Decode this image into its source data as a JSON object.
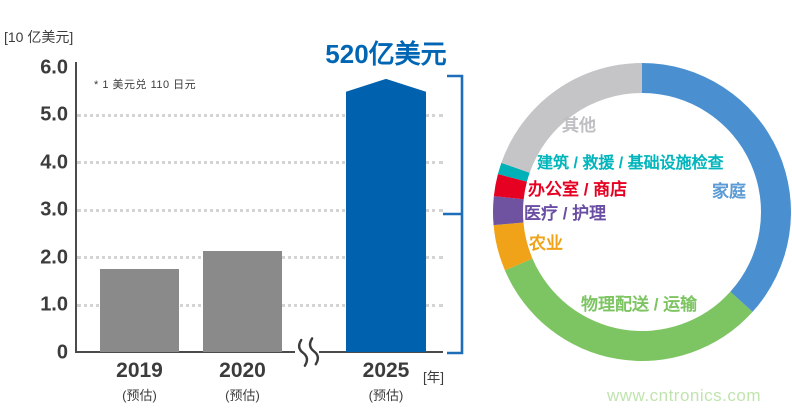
{
  "bar_chart": {
    "unit_label": "[10 亿美元]",
    "exchange_note": "* 1 美元兑 110 日元",
    "highlight_label": "520亿美元",
    "highlight_color": "#0066b4",
    "x_axis_suffix": "[年]",
    "category_note": "(预估)",
    "bar_gray": "#8a8a8a",
    "bar_blue": "#0061ae",
    "bracket_color": "#1e6db9"
  },
  "donut_chart": {
    "segment_order": "clockwise from 12 o'clock"
  },
  "watermark": {
    "text": "www.cntronics.com",
    "color": "#c0e4ae"
  },
  "chart_data": [
    {
      "type": "bar",
      "title": "520亿美元",
      "ylabel": "[10 亿美元]",
      "xlabel": "[年]",
      "note": "* 1 美元兑 110 日元",
      "categories": [
        "2019",
        "2020",
        "2025"
      ],
      "category_note": "(预估)",
      "values": [
        1.75,
        2.12,
        5.48
      ],
      "peak_values": [
        null,
        null,
        5.75
      ],
      "colors": [
        "#8a8a8a",
        "#8a8a8a",
        "#0061ae"
      ],
      "ylim": [
        0,
        6.0
      ],
      "ytick_labels": [
        "6.0",
        "5.0",
        "4.0",
        "3.0",
        "2.0",
        "1.0",
        "0"
      ],
      "grid": "dotted horizontal at 1.0–5.0",
      "axis_break_after": "2020"
    },
    {
      "type": "pie",
      "donut": true,
      "start": "top",
      "direction": "clockwise",
      "labels": [
        "家庭",
        "物理配送 / 运输",
        "农业",
        "医疗 / 护理",
        "办公室 / 商店",
        "建筑 / 救援 / 基础设施检查",
        "其他"
      ],
      "values_pct": [
        36.7,
        31.9,
        5.0,
        3.1,
        2.4,
        1.25,
        19.65
      ],
      "colors": [
        "#4a90d0",
        "#7dc462",
        "#f0a318",
        "#6f52a0",
        "#e60021",
        "#00b1b7",
        "#c5c5c8"
      ],
      "label_colors": [
        "#5b9bd5",
        "#7dc462",
        "#f0a318",
        "#6a4ea3",
        "#e60021",
        "#00b5bc",
        "#bfbfc3"
      ]
    }
  ]
}
